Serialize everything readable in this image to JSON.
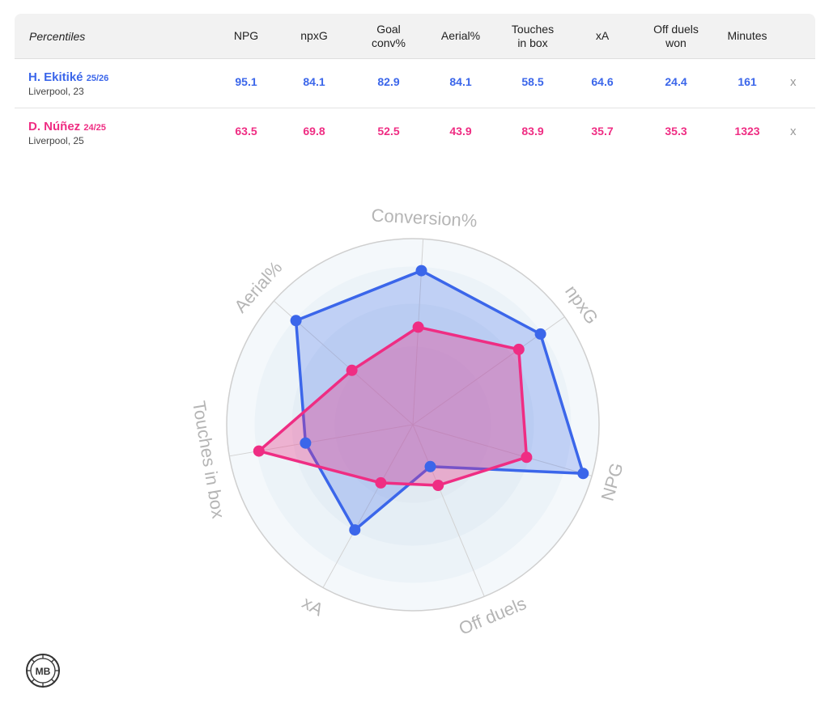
{
  "table": {
    "corner_label": "Percentiles",
    "columns": [
      "NPG",
      "npxG",
      "Goal\nconv%",
      "Aerial%",
      "Touches\nin box",
      "xA",
      "Off duels\nwon",
      "Minutes"
    ],
    "remove_label": "x",
    "players": [
      {
        "name": "H. Ekitiké",
        "season": "25/26",
        "team": "Liverpool, 23",
        "color": "#3b66ea",
        "values": [
          "95.1",
          "84.1",
          "82.9",
          "84.1",
          "58.5",
          "64.6",
          "24.4",
          "161"
        ]
      },
      {
        "name": "D. Núñez",
        "season": "24/25",
        "team": "Liverpool, 25",
        "color": "#ef2d83",
        "values": [
          "63.5",
          "69.8",
          "52.5",
          "43.9",
          "83.9",
          "35.7",
          "35.3",
          "1323"
        ]
      }
    ]
  },
  "chart_data": {
    "type": "radar",
    "axes": [
      "NPG",
      "npxG",
      "Conversion%",
      "Aerial%",
      "Touches in box",
      "xA",
      "Off duels"
    ],
    "range": [
      0,
      100
    ],
    "series": [
      {
        "name": "H. Ekitiké 25/26",
        "color": "#3b66ea",
        "values": [
          95.1,
          84.1,
          82.9,
          84.1,
          58.5,
          64.6,
          24.4
        ]
      },
      {
        "name": "D. Núñez 24/25",
        "color": "#ef2d83",
        "values": [
          63.5,
          69.8,
          52.5,
          43.9,
          83.9,
          35.7,
          35.3
        ]
      }
    ]
  },
  "logo": {
    "text": "MB"
  }
}
